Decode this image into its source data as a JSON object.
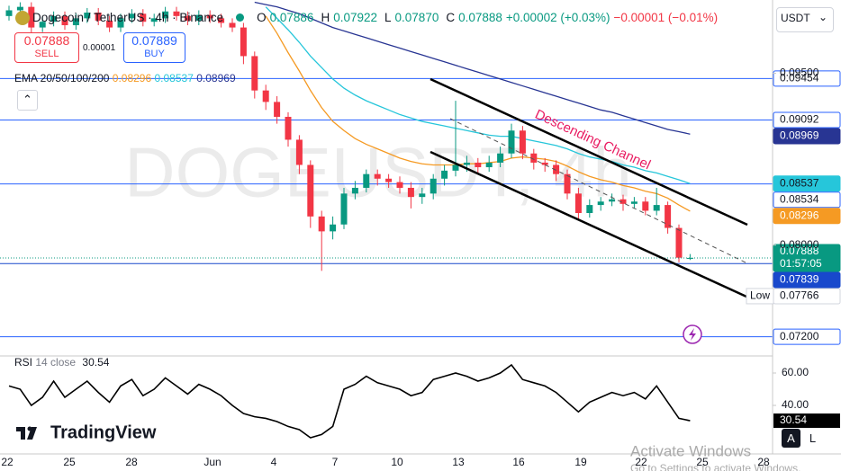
{
  "header": {
    "symbol": "Dogecoin / TetherUS · 4h · Binance",
    "o_label": "O",
    "o": "0.07886",
    "h_label": "H",
    "h": "0.07922",
    "l_label": "L",
    "l": "0.07870",
    "c_label": "C",
    "c": "0.07888",
    "change": "+0.00002 (+0.03%)",
    "change_ask": "−0.00001 (−0.01%)",
    "currency": "USDT"
  },
  "trade": {
    "sell_price": "0.07888",
    "sell": "SELL",
    "spread": "0.00001",
    "buy_price": "0.07889",
    "buy": "BUY"
  },
  "watermark": "DOGEUSDT, 4h",
  "drawing": {
    "text": "Descending Channel"
  },
  "logo": "TradingView",
  "os_notice": {
    "title": "Activate Windows",
    "text": "Go to Settings to activate Windows."
  },
  "scale_buttons": [
    "A",
    "L"
  ],
  "chart_data": [
    {
      "type": "candlestick",
      "indicator": "EMA 20/50/100/200",
      "up_color": "#089981",
      "down_color": "#f23645",
      "open": [
        0.1,
        0.1005,
        0.1008,
        0.099,
        0.0995,
        0.1,
        0.0992,
        0.0998,
        0.1003,
        0.0996,
        0.099,
        0.0998,
        0.1002,
        0.0995,
        0.0998,
        0.1004,
        0.1,
        0.0996,
        0.1001,
        0.0998,
        0.0994,
        0.099,
        0.0965,
        0.0935,
        0.0925,
        0.0912,
        0.0892,
        0.087,
        0.0825,
        0.0812,
        0.0818,
        0.0845,
        0.085,
        0.0862,
        0.0858,
        0.0855,
        0.085,
        0.0842,
        0.0845,
        0.0858,
        0.0865,
        0.087,
        0.0872,
        0.0868,
        0.0872,
        0.088,
        0.09,
        0.088,
        0.0872,
        0.087,
        0.0862,
        0.0845,
        0.0828,
        0.0835,
        0.0838,
        0.084,
        0.0836,
        0.0838,
        0.083,
        0.0835,
        0.0815,
        0.07886
      ],
      "high": [
        0.1009,
        0.1012,
        0.1012,
        0.0999,
        0.1004,
        0.1004,
        0.1002,
        0.1007,
        0.1007,
        0.1,
        0.1002,
        0.1006,
        0.1006,
        0.1002,
        0.1008,
        0.1008,
        0.1004,
        0.1005,
        0.1005,
        0.1002,
        0.0998,
        0.0994,
        0.0969,
        0.094,
        0.093,
        0.0916,
        0.0896,
        0.0874,
        0.083,
        0.0825,
        0.085,
        0.0856,
        0.0866,
        0.0866,
        0.0862,
        0.086,
        0.0855,
        0.085,
        0.0862,
        0.087,
        0.0926,
        0.0878,
        0.0876,
        0.0878,
        0.0886,
        0.0906,
        0.0904,
        0.0884,
        0.0876,
        0.0874,
        0.0866,
        0.085,
        0.084,
        0.0842,
        0.0845,
        0.0844,
        0.0842,
        0.0842,
        0.085,
        0.0838,
        0.0818,
        0.07922
      ],
      "low": [
        0.0996,
        0.1001,
        0.0982,
        0.0986,
        0.0991,
        0.0988,
        0.0988,
        0.0994,
        0.0992,
        0.0986,
        0.0986,
        0.0994,
        0.0991,
        0.0991,
        0.0994,
        0.0996,
        0.0992,
        0.0992,
        0.0994,
        0.099,
        0.0986,
        0.0958,
        0.0928,
        0.0918,
        0.0906,
        0.0886,
        0.0862,
        0.0815,
        0.07775,
        0.0805,
        0.0814,
        0.084,
        0.0846,
        0.0852,
        0.085,
        0.0845,
        0.0832,
        0.0836,
        0.084,
        0.0852,
        0.086,
        0.0864,
        0.0862,
        0.0864,
        0.0868,
        0.0876,
        0.0875,
        0.0866,
        0.0864,
        0.0856,
        0.084,
        0.0822,
        0.0824,
        0.083,
        0.0834,
        0.083,
        0.0832,
        0.0826,
        0.0826,
        0.081,
        0.0785,
        0.0787
      ],
      "close": [
        0.1005,
        0.1008,
        0.099,
        0.0995,
        0.1,
        0.0992,
        0.0998,
        0.1003,
        0.0996,
        0.099,
        0.0998,
        0.1002,
        0.0995,
        0.0998,
        0.1004,
        0.1,
        0.0996,
        0.1001,
        0.0998,
        0.0994,
        0.099,
        0.0965,
        0.0935,
        0.0925,
        0.0912,
        0.0892,
        0.087,
        0.0825,
        0.0812,
        0.0818,
        0.0845,
        0.085,
        0.0862,
        0.0858,
        0.0855,
        0.085,
        0.0842,
        0.0845,
        0.0858,
        0.0865,
        0.087,
        0.0872,
        0.0868,
        0.0872,
        0.088,
        0.09,
        0.088,
        0.0872,
        0.087,
        0.0862,
        0.0845,
        0.0828,
        0.0835,
        0.0838,
        0.084,
        0.0836,
        0.0838,
        0.083,
        0.0835,
        0.0815,
        0.0789,
        0.07888
      ],
      "series": [
        {
          "color": "#f59a23",
          "values": [
            null,
            null,
            null,
            null,
            null,
            null,
            null,
            null,
            null,
            null,
            null,
            null,
            null,
            null,
            null,
            null,
            null,
            null,
            null,
            null,
            null,
            null,
            null,
            0.1,
            0.0985,
            0.0968,
            0.0952,
            0.0935,
            0.092,
            0.0908,
            0.09,
            0.0893,
            0.0888,
            0.0884,
            0.088,
            0.0876,
            0.0873,
            0.0871,
            0.087,
            0.087,
            0.087,
            0.0871,
            0.0871,
            0.0872,
            0.0873,
            0.0876,
            0.0877,
            0.0876,
            0.0875,
            0.0873,
            0.0869,
            0.0864,
            0.086,
            0.0857,
            0.0855,
            0.0852,
            0.085,
            0.0847,
            0.0845,
            0.0841,
            0.0835,
            0.08296
          ]
        },
        {
          "color": "#26c6da",
          "values": [
            null,
            null,
            null,
            null,
            null,
            null,
            null,
            null,
            null,
            null,
            null,
            null,
            null,
            null,
            null,
            null,
            null,
            null,
            null,
            null,
            null,
            null,
            null,
            0.1008,
            0.0998,
            0.0988,
            0.0977,
            0.0965,
            0.0955,
            0.0945,
            0.0937,
            0.0931,
            0.0926,
            0.0922,
            0.0918,
            0.0914,
            0.0911,
            0.0908,
            0.0906,
            0.0904,
            0.0902,
            0.09,
            0.0898,
            0.0896,
            0.0895,
            0.0895,
            0.0893,
            0.0891,
            0.0889,
            0.0887,
            0.0884,
            0.088,
            0.0877,
            0.0875,
            0.0873,
            0.087,
            0.0868,
            0.0865,
            0.0863,
            0.086,
            0.0857,
            0.08537
          ]
        },
        {
          "color": "#283593",
          "values": [
            null,
            null,
            null,
            null,
            null,
            null,
            null,
            null,
            null,
            null,
            null,
            null,
            null,
            null,
            null,
            null,
            null,
            null,
            null,
            null,
            null,
            null,
            0.1012,
            0.101,
            0.1008,
            0.1005,
            0.1002,
            0.0998,
            0.0994,
            0.099,
            0.0987,
            0.0984,
            0.0981,
            0.0978,
            0.0975,
            0.0972,
            0.0969,
            0.0966,
            0.0963,
            0.096,
            0.0957,
            0.0954,
            0.0951,
            0.0948,
            0.0945,
            0.0942,
            0.0939,
            0.0936,
            0.0933,
            0.093,
            0.0927,
            0.0924,
            0.0921,
            0.0918,
            0.0916,
            0.0913,
            0.091,
            0.0907,
            0.0904,
            0.0901,
            0.0899,
            0.08969
          ]
        }
      ],
      "ylim": [
        0.0704,
        0.1014
      ],
      "yticks": [
        {
          "value": 0.095,
          "label": "0.09500"
        },
        {
          "value": 0.08,
          "label": "0.08000"
        }
      ],
      "price_lines": [
        {
          "value": 0.09454,
          "color": "#2962ff",
          "tag": "outline"
        },
        {
          "value": 0.09092,
          "color": "#2962ff",
          "tag": "outline"
        },
        {
          "value": 0.08534,
          "color": "#2962ff",
          "tag": "outline"
        },
        {
          "value": 0.07839,
          "color": "#1848cc",
          "tag": "filled"
        },
        {
          "value": 0.072,
          "label": "0.07200",
          "color": "#2962ff",
          "tag": "outline"
        }
      ],
      "countdown": "01:57:05",
      "low_marker": {
        "label": "Low",
        "value": 0.07766
      },
      "x_labels": [
        "22",
        "25",
        "28",
        "Jun",
        "4",
        "7",
        "10",
        "13",
        "16",
        "19",
        "22",
        "25",
        "28"
      ]
    },
    {
      "type": "line",
      "name": "RSI",
      "params": "14 close",
      "color": "#000000",
      "values": [
        52,
        50,
        40,
        45,
        55,
        45,
        50,
        55,
        48,
        42,
        52,
        56,
        46,
        50,
        57,
        52,
        47,
        53,
        50,
        46,
        40,
        35,
        33,
        32,
        30,
        27,
        25,
        20,
        22,
        27,
        50,
        53,
        58,
        54,
        52,
        50,
        46,
        48,
        56,
        58,
        60,
        58,
        55,
        57,
        60,
        65,
        56,
        54,
        52,
        48,
        42,
        36,
        42,
        45,
        48,
        46,
        48,
        44,
        52,
        42,
        32,
        30.54
      ],
      "ylim": [
        12.8,
        70
      ],
      "yticks": [
        {
          "value": 60,
          "label": "60.00"
        },
        {
          "value": 40,
          "label": "40.00"
        }
      ]
    }
  ]
}
